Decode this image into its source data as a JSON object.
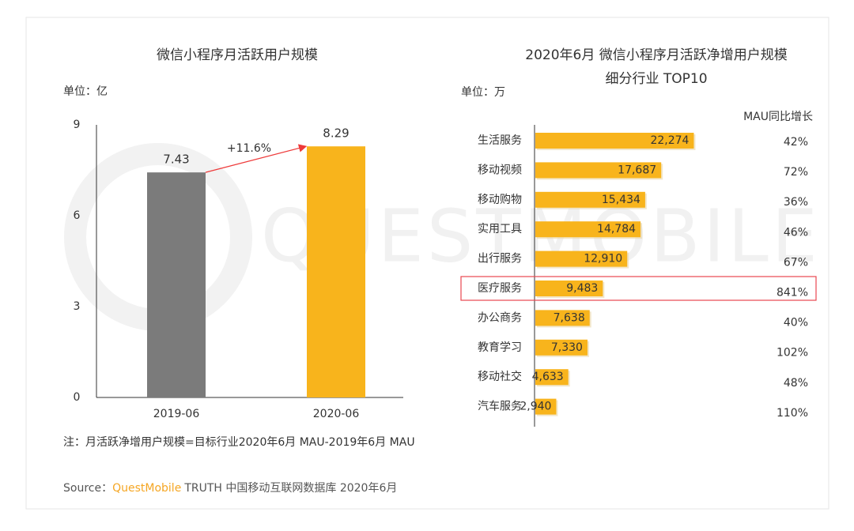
{
  "chart_data": [
    {
      "type": "bar",
      "title": "微信小程序月活跃用户规模",
      "unit": "单位：亿",
      "categories": [
        "2019-06",
        "2020-06"
      ],
      "values": [
        7.43,
        8.29
      ],
      "colors": [
        "#7b7b7b",
        "#f8b41c"
      ],
      "ylim": [
        0,
        9
      ],
      "yticks": [
        0,
        3,
        6,
        9
      ],
      "annotation": "+11.6%"
    },
    {
      "type": "hbar",
      "title": [
        "2020年6月 微信小程序月活跃净增用户规模",
        "细分行业 TOP10"
      ],
      "unit": "单位：万",
      "column_header": "MAU同比增长",
      "categories": [
        "生活服务",
        "移动视频",
        "移动购物",
        "实用工具",
        "出行服务",
        "医疗服务",
        "办公商务",
        "教育学习",
        "移动社交",
        "汽车服务"
      ],
      "values": [
        22274,
        17687,
        15434,
        14784,
        12910,
        9483,
        7638,
        7330,
        4633,
        2940
      ],
      "value_labels": [
        "22,274",
        "17,687",
        "15,434",
        "14,784",
        "12,910",
        "9,483",
        "7,638",
        "7,330",
        "4,633",
        "2,940"
      ],
      "color": "#f8b41c",
      "growth": {
        "values": [
          42,
          72,
          36,
          46,
          67,
          841,
          40,
          102,
          48,
          110
        ],
        "value_labels": [
          "42%",
          "72%",
          "36%",
          "46%",
          "67%",
          "841%",
          "40%",
          "102%",
          "48%",
          "110%"
        ]
      },
      "highlight": "医疗服务"
    }
  ],
  "watermark": "QUESTMOBILE",
  "note": "注：月活跃净增用户规模=目标行业2020年6月 MAU-2019年6月 MAU",
  "source": {
    "label": "Source：",
    "brand": "QuestMobile",
    "text": "TRUTH 中国移动互联网数据库 2020年6月"
  }
}
